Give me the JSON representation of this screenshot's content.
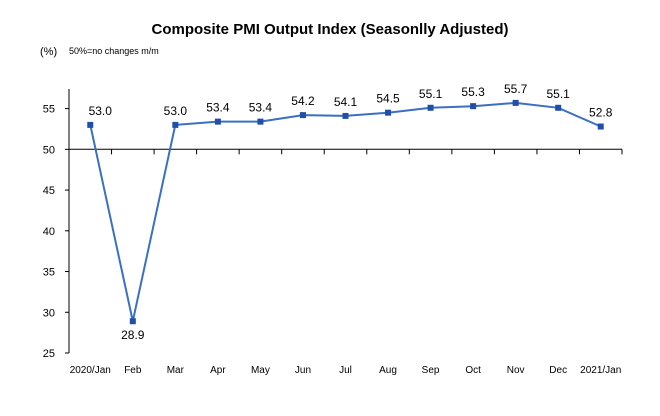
{
  "chart_data": {
    "type": "line",
    "title": "Composite PMI Output Index (Seasonlly Adjusted)",
    "unit_label": "(%)",
    "note": "50%=no changes  m/m",
    "categories": [
      "2020/Jan",
      "Feb",
      "Mar",
      "Apr",
      "May",
      "Jun",
      "Jul",
      "Aug",
      "Sep",
      "Oct",
      "Nov",
      "Dec",
      "2021/Jan"
    ],
    "values": [
      53.0,
      28.9,
      53.0,
      53.4,
      53.4,
      54.2,
      54.1,
      54.5,
      55.1,
      55.3,
      55.7,
      55.1,
      52.8
    ],
    "data_labels": [
      "53.0",
      "28.9",
      "53.0",
      "53.4",
      "53.4",
      "54.2",
      "54.1",
      "54.5",
      "55.1",
      "55.3",
      "55.7",
      "55.1",
      "52.8"
    ],
    "ylim": [
      25,
      55
    ],
    "y_ticks": [
      25,
      30,
      35,
      40,
      45,
      50,
      55
    ],
    "x_axis_crosses_at": 50,
    "grid": false,
    "legend": "none",
    "series_color": "#3a6fc4"
  }
}
